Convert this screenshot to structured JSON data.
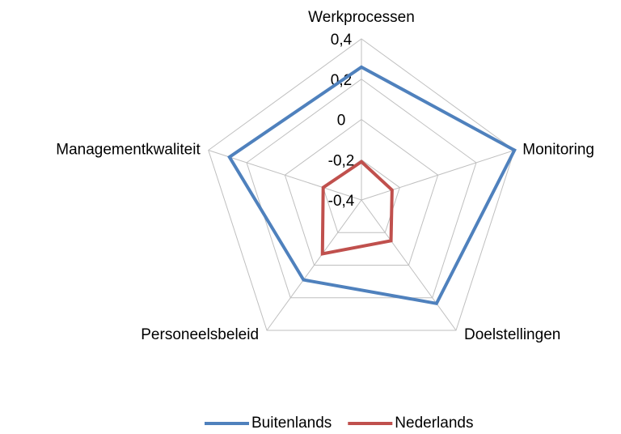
{
  "chart_data": {
    "type": "radar",
    "categories": [
      "Werkprocessen",
      "Monitoring",
      "Doelstellingen",
      "Personeelsbeleid",
      "Managementkwaliteit"
    ],
    "series": [
      {
        "name": "Buitenlands",
        "color": "#4f81bd",
        "values": [
          0.26,
          0.4,
          0.235,
          0.09,
          0.29
        ]
      },
      {
        "name": "Nederlands",
        "color": "#c0504d",
        "values": [
          -0.21,
          -0.24,
          -0.15,
          -0.07,
          -0.2
        ]
      }
    ],
    "ylim": [
      -0.4,
      0.4
    ],
    "yticks": [
      {
        "value": -0.4,
        "label": "-0,4"
      },
      {
        "value": -0.2,
        "label": "-0,2"
      },
      0,
      {
        "value": 0.2,
        "label": "0,2"
      },
      {
        "value": 0.4,
        "label": "0,4"
      }
    ],
    "grid": true
  }
}
